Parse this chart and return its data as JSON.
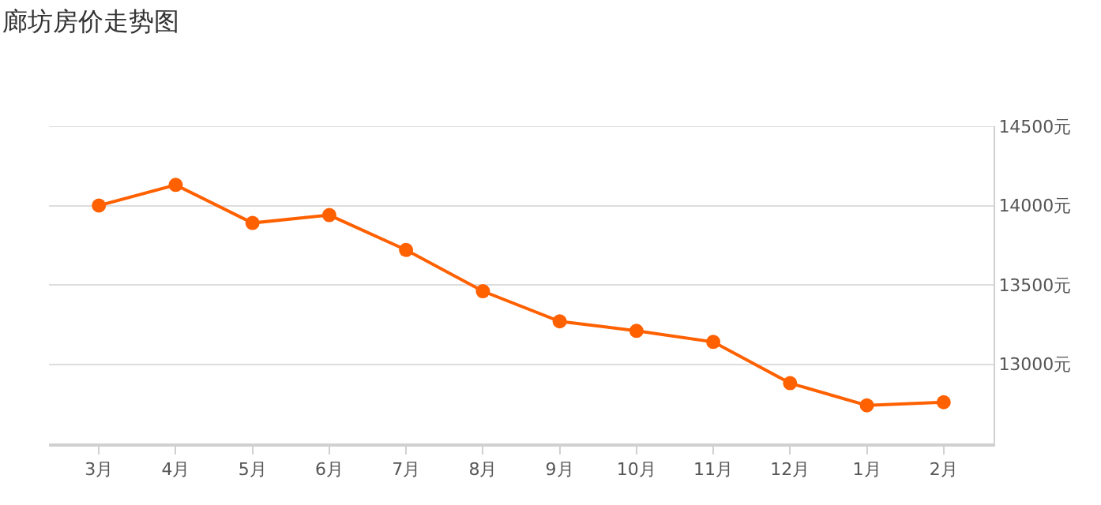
{
  "chart_data": {
    "type": "line",
    "title": "廊坊房价走势图",
    "categories": [
      "3月",
      "4月",
      "5月",
      "6月",
      "7月",
      "8月",
      "9月",
      "10月",
      "11月",
      "12月",
      "1月",
      "2月"
    ],
    "series": [
      {
        "color": "#ff6000",
        "values": [
          14000,
          14130,
          13890,
          13940,
          13720,
          13460,
          13270,
          13210,
          13140,
          12880,
          12740,
          12760
        ]
      }
    ],
    "ylim": [
      12500,
      14500
    ],
    "yticks": [
      {
        "value": 13000,
        "label": "13000元"
      },
      {
        "value": 13500,
        "label": "13500元"
      },
      {
        "value": 14000,
        "label": "14000元"
      },
      {
        "value": 14500,
        "label": "14500元"
      }
    ],
    "grid": "y",
    "marker": "circle",
    "line_style": "solid"
  }
}
